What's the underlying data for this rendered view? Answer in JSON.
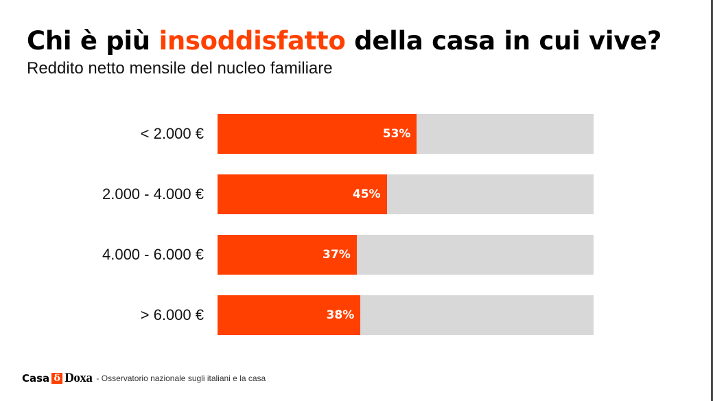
{
  "header": {
    "title_prefix": "Chi è più ",
    "title_highlight": "insoddisfatto",
    "title_suffix": " della casa in cui vive?",
    "subtitle": "Reddito netto mensile del nucleo familiare"
  },
  "colors": {
    "accent": "#ff4000",
    "track": "#d8d8d8",
    "text": "#111111"
  },
  "chart_data": {
    "type": "bar",
    "orientation": "horizontal",
    "title": "Chi è più insoddisfatto della casa in cui vive?",
    "subtitle": "Reddito netto mensile del nucleo familiare",
    "xlabel": "",
    "ylabel": "",
    "xlim": [
      0,
      100
    ],
    "unit": "%",
    "grid": false,
    "categories": [
      "< 2.000 €",
      "2.000 - 4.000 €",
      "4.000 - 6.000 €",
      "> 6.000 €"
    ],
    "values": [
      53,
      45,
      37,
      38
    ],
    "labels": [
      "53%",
      "45%",
      "37%",
      "38%"
    ]
  },
  "footer": {
    "logo_casa": "Casa",
    "logo_mark": "δ",
    "logo_doxa": "Doxa",
    "note": "- Osservatorio nazionale sugli italiani e la casa"
  }
}
